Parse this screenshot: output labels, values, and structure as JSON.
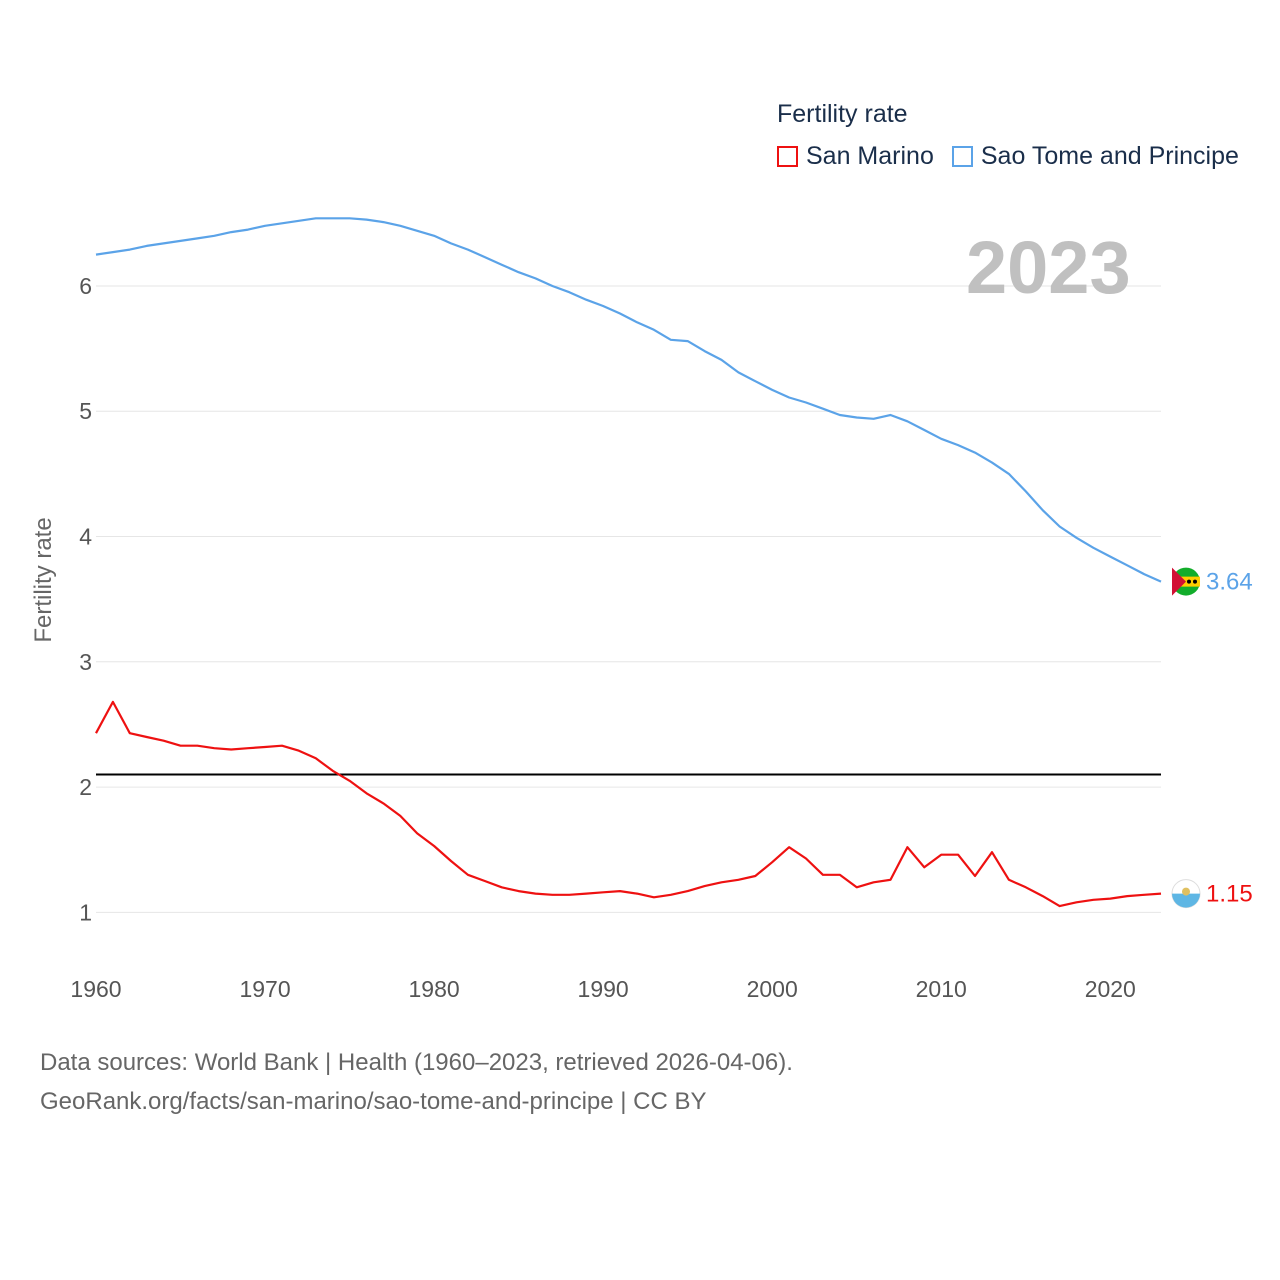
{
  "legend": {
    "title": "Fertility rate",
    "items": [
      {
        "label": "San Marino",
        "color": "#ee1111"
      },
      {
        "label": "Sao Tome and Principe",
        "color": "#5ba3e8"
      }
    ]
  },
  "year_label": "2023",
  "footer": {
    "line1": "Data sources: World Bank | Health (1960–2023, retrieved 2026-04-06).",
    "line2": "GeoRank.org/facts/san-marino/sao-tome-and-principe | CC BY"
  },
  "chart_data": {
    "type": "line",
    "title": "Fertility rate",
    "xlabel": "",
    "ylabel": "Fertility rate",
    "xlim": [
      1960,
      2023
    ],
    "ylim": [
      0.5,
      6.75
    ],
    "x_ticks": [
      1960,
      1970,
      1980,
      1990,
      2000,
      2010,
      2020
    ],
    "y_ticks": [
      1,
      2,
      3,
      4,
      5,
      6
    ],
    "reference_line": {
      "y": 2.1,
      "color": "#000000"
    },
    "x": [
      1960,
      1961,
      1962,
      1963,
      1964,
      1965,
      1966,
      1967,
      1968,
      1969,
      1970,
      1971,
      1972,
      1973,
      1974,
      1975,
      1976,
      1977,
      1978,
      1979,
      1980,
      1981,
      1982,
      1983,
      1984,
      1985,
      1986,
      1987,
      1988,
      1989,
      1990,
      1991,
      1992,
      1993,
      1994,
      1995,
      1996,
      1997,
      1998,
      1999,
      2000,
      2001,
      2002,
      2003,
      2004,
      2005,
      2006,
      2007,
      2008,
      2009,
      2010,
      2011,
      2012,
      2013,
      2014,
      2015,
      2016,
      2017,
      2018,
      2019,
      2020,
      2021,
      2022,
      2023
    ],
    "series": [
      {
        "name": "San Marino",
        "color": "#ee1111",
        "end_label": "1.15",
        "values": [
          2.43,
          2.68,
          2.43,
          2.4,
          2.37,
          2.33,
          2.33,
          2.31,
          2.3,
          2.31,
          2.32,
          2.33,
          2.29,
          2.23,
          2.13,
          2.05,
          1.95,
          1.87,
          1.77,
          1.63,
          1.53,
          1.41,
          1.3,
          1.25,
          1.2,
          1.17,
          1.15,
          1.14,
          1.14,
          1.15,
          1.16,
          1.17,
          1.15,
          1.12,
          1.14,
          1.17,
          1.21,
          1.24,
          1.26,
          1.29,
          1.4,
          1.52,
          1.43,
          1.3,
          1.3,
          1.2,
          1.24,
          1.26,
          1.52,
          1.36,
          1.46,
          1.46,
          1.29,
          1.48,
          1.26,
          1.2,
          1.13,
          1.05,
          1.08,
          1.1,
          1.11,
          1.13,
          1.14,
          1.15
        ]
      },
      {
        "name": "Sao Tome and Principe",
        "color": "#5ba3e8",
        "end_label": "3.64",
        "values": [
          6.25,
          6.27,
          6.29,
          6.32,
          6.34,
          6.36,
          6.38,
          6.4,
          6.43,
          6.45,
          6.48,
          6.5,
          6.52,
          6.54,
          6.54,
          6.54,
          6.53,
          6.51,
          6.48,
          6.44,
          6.4,
          6.34,
          6.29,
          6.23,
          6.17,
          6.11,
          6.06,
          6.0,
          5.95,
          5.89,
          5.84,
          5.78,
          5.71,
          5.65,
          5.57,
          5.56,
          5.48,
          5.41,
          5.31,
          5.24,
          5.17,
          5.11,
          5.07,
          5.02,
          4.97,
          4.95,
          4.94,
          4.97,
          4.92,
          4.85,
          4.78,
          4.73,
          4.67,
          4.59,
          4.5,
          4.36,
          4.21,
          4.08,
          3.99,
          3.91,
          3.84,
          3.77,
          3.7,
          3.64
        ]
      }
    ]
  }
}
